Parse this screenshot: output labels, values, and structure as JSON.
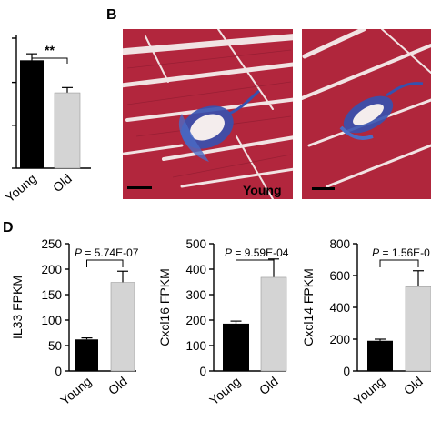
{
  "panel_labels": {
    "b": "B",
    "d": "D"
  },
  "panel_b": {
    "young_label": "Young",
    "stain_color": "#b2263d",
    "fibrosis_color": "#3552b0"
  },
  "chart_data": [
    {
      "id": "panelA",
      "type": "bar",
      "categories": [
        "Young",
        "Old"
      ],
      "values": [
        0.83,
        0.58
      ],
      "errors": [
        0.05,
        0.04
      ],
      "bar_colors": [
        "#000000",
        "#d4d4d4"
      ],
      "significance": "**",
      "ylabel": ""
    },
    {
      "id": "il33",
      "type": "bar",
      "categories": [
        "Young",
        "Old"
      ],
      "values": [
        62,
        174
      ],
      "errors": [
        3,
        22
      ],
      "bar_colors": [
        "#000000",
        "#d4d4d4"
      ],
      "ylabel": "IL33 FPKM",
      "ylim": [
        0,
        250
      ],
      "yticks": [
        "0",
        "50",
        "100",
        "150",
        "200",
        "250"
      ],
      "pvalue": {
        "p": "P",
        "text": " = 5.74E-07"
      }
    },
    {
      "id": "cxcl16",
      "type": "bar",
      "categories": [
        "Young",
        "Old"
      ],
      "values": [
        186,
        368
      ],
      "errors": [
        10,
        72
      ],
      "bar_colors": [
        "#000000",
        "#d4d4d4"
      ],
      "ylabel": "Cxcl16 FPKM",
      "ylim": [
        0,
        500
      ],
      "yticks": [
        "0",
        "100",
        "200",
        "300",
        "400",
        "500"
      ],
      "pvalue": {
        "p": "P",
        "text": " = 9.59E-04"
      }
    },
    {
      "id": "cxcl14",
      "type": "bar",
      "categories": [
        "Young",
        "Old"
      ],
      "values": [
        190,
        530
      ],
      "errors": [
        10,
        100
      ],
      "bar_colors": [
        "#000000",
        "#d4d4d4"
      ],
      "ylabel": "Cxcl14 FPKM",
      "ylim": [
        0,
        800
      ],
      "yticks": [
        "0",
        "200",
        "400",
        "600",
        "800"
      ],
      "pvalue": {
        "p": "P",
        "text": " = 1.56E-0"
      }
    }
  ]
}
